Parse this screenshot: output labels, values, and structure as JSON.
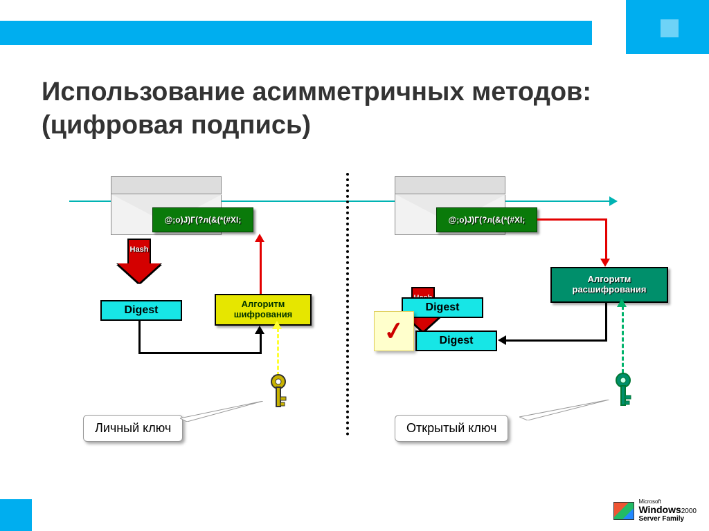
{
  "slide": {
    "title": "Использование асимметричных методов: (цифровая подпись)",
    "title_fontsize": 38,
    "title_color": "#333333"
  },
  "theme": {
    "topbar_color": "#00aeef",
    "topbar_width": 855,
    "corner_square_color": "#00aeef",
    "corner_inner_color": "#6ed3f7",
    "footer_square_color": "#00aeef",
    "background": "#ffffff",
    "divider_color": "#000000"
  },
  "diagram": {
    "type": "flowchart",
    "transmit_arrow_color": "#00b3b3",
    "left": {
      "cipher_text": "@;o)J)Г(?л(&(*(#XI;",
      "cipher_bg": "#0a7a0a",
      "hash_label": "Hash",
      "hash_color": "#d40000",
      "digest_label": "Digest",
      "digest_bg": "#17e6e6",
      "algo_label": "Алгоритм шифрования",
      "algo_bg": "#e6e600",
      "algo_text_color": "#003300",
      "key_callout": "Личный ключ",
      "key_color": "#c9b300",
      "arrow_to_algo_color": "#000000",
      "arrow_algo_to_cipher_color": "#e30000",
      "key_dashed_color": "#ffff33"
    },
    "right": {
      "cipher_text": "@;o)J)Г(?л(&(*(#XI;",
      "cipher_bg": "#0a7a0a",
      "hash_label": "Hash",
      "hash_color": "#d40000",
      "digest1_label": "Digest",
      "digest2_label": "Digest",
      "digest_bg": "#17e6e6",
      "algo_label": "Алгоритм расшифрования",
      "algo_bg": "#008f6b",
      "algo_text_color": "#ffffff",
      "key_callout": "Открытый ключ",
      "key_color": "#008f6b",
      "arrow_cipher_to_algo_color": "#e30000",
      "arrow_algo_to_digest_color": "#000000",
      "key_dashed_color": "#00b36b",
      "check_mark": "✓"
    }
  },
  "footer": {
    "logo_line1": "Microsoft",
    "logo_brand": "Windows",
    "logo_year": "2000",
    "logo_sub": "Server Family"
  }
}
